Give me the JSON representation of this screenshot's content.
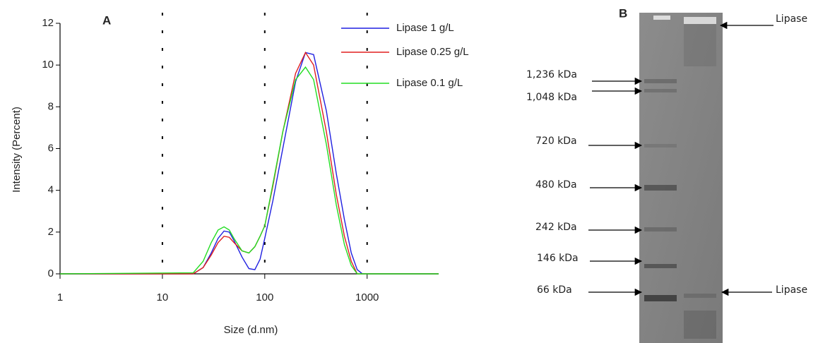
{
  "chart_data": {
    "type": "line",
    "panel_label": "A",
    "x_label": "Size (d.nm)",
    "y_label": "Intensity (Percent)",
    "x": [
      1,
      20,
      25,
      30,
      35,
      40,
      45,
      50,
      60,
      70,
      80,
      90,
      100,
      120,
      150,
      200,
      250,
      300,
      400,
      500,
      600,
      700,
      800,
      900,
      1000,
      5000
    ],
    "series": [
      {
        "name": "Lipase 1 g/L",
        "color": "#1f1fe0",
        "values": [
          0,
          0,
          0.3,
          1.0,
          1.7,
          2.05,
          2.0,
          1.6,
          0.8,
          0.25,
          0.2,
          0.7,
          1.7,
          3.5,
          6.0,
          9.2,
          10.6,
          10.5,
          7.8,
          4.8,
          2.6,
          1.0,
          0.2,
          0,
          0,
          0
        ]
      },
      {
        "name": "Lipase 0.25 g/L",
        "color": "#e01f1f",
        "values": [
          0,
          0,
          0.3,
          0.9,
          1.5,
          1.8,
          1.75,
          1.5,
          1.1,
          1.0,
          1.3,
          1.8,
          2.3,
          4.2,
          6.8,
          9.6,
          10.6,
          10.0,
          6.8,
          3.8,
          1.8,
          0.6,
          0,
          0,
          0,
          0
        ]
      },
      {
        "name": "Lipase 0.1 g/L",
        "color": "#22dd22",
        "values": [
          0,
          0.05,
          0.6,
          1.5,
          2.1,
          2.25,
          2.1,
          1.7,
          1.1,
          1.0,
          1.3,
          1.8,
          2.3,
          4.3,
          6.8,
          9.3,
          9.9,
          9.3,
          6.2,
          3.3,
          1.4,
          0.4,
          0,
          0,
          0,
          0
        ]
      }
    ],
    "xlim": [
      1,
      5000
    ],
    "xticks": [
      1,
      10,
      100,
      1000
    ],
    "x_log": true,
    "ylim": [
      0,
      12
    ],
    "yticks": [
      0,
      2,
      4,
      6,
      8,
      10,
      12
    ],
    "grid": "x",
    "legend": "top-right"
  },
  "gel": {
    "panel_label": "B",
    "markers": [
      "1,236 kDa",
      "1,048 kDa",
      "720 kDa",
      "480 kDa",
      "242 kDa",
      "146 kDa",
      "66 kDa"
    ],
    "annotations": [
      "Lipase",
      "Lipase"
    ]
  }
}
